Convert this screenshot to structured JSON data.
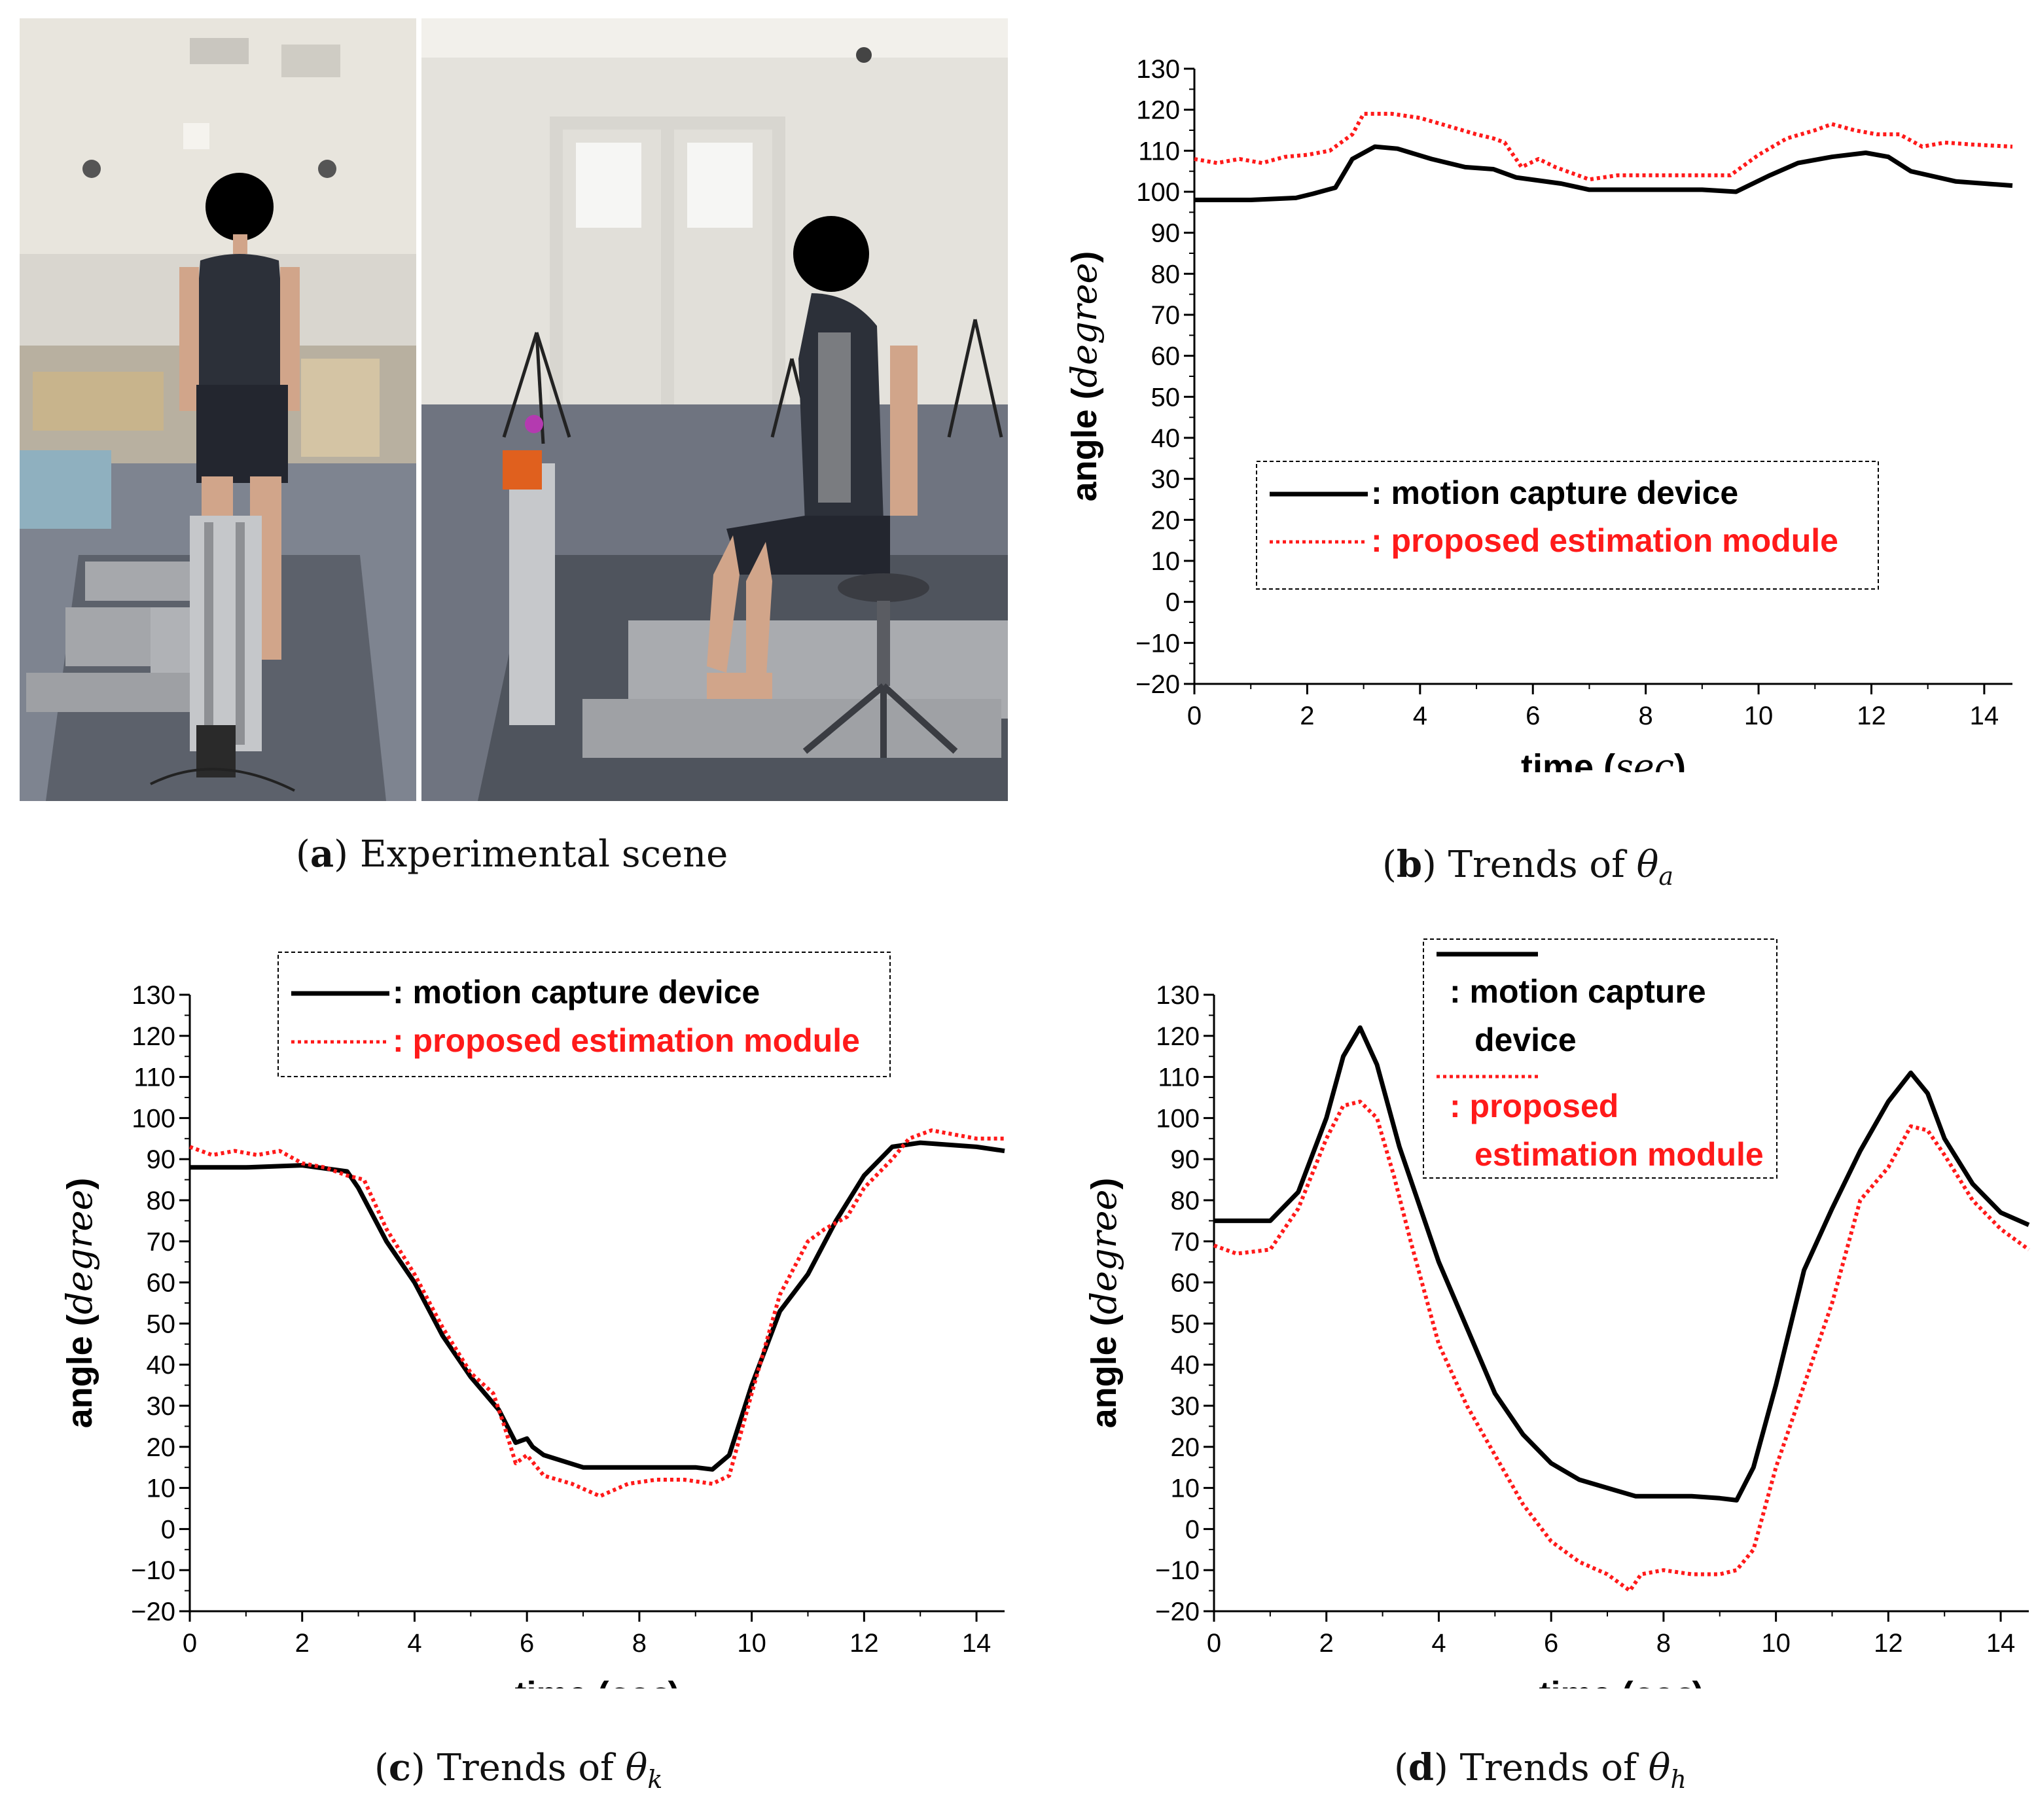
{
  "panels": {
    "a": {
      "letter": "a",
      "caption": "Experimental scene"
    },
    "b": {
      "letter": "b",
      "caption_prefix": "Trends of",
      "symbol": "θ",
      "subscript": "a"
    },
    "c": {
      "letter": "c",
      "caption_prefix": "Trends of",
      "symbol": "θ",
      "subscript": "k"
    },
    "d": {
      "letter": "d",
      "caption_prefix": "Trends of",
      "symbol": "θ",
      "subscript": "h"
    }
  },
  "colors": {
    "motion": "#000000",
    "proposed": "#ff1a1a"
  },
  "chart_data": [
    {
      "id": "b",
      "type": "line",
      "xlabel": "time",
      "xunit": "sec",
      "ylabel": "angle",
      "yunit": "degree",
      "xlim": [
        0,
        14.5
      ],
      "ylim": [
        -20,
        130
      ],
      "xticks": [
        0,
        2,
        4,
        6,
        8,
        10,
        12,
        14
      ],
      "yticks": [
        -20,
        -10,
        0,
        10,
        20,
        30,
        40,
        50,
        60,
        70,
        80,
        90,
        100,
        110,
        120,
        130
      ],
      "legend": {
        "placement": "lower-center",
        "entries": [
          ": motion capture device",
          ": proposed estimation module"
        ]
      },
      "series": [
        {
          "name": "motion capture device",
          "x": [
            0,
            1,
            1.8,
            2.1,
            2.5,
            2.8,
            3.2,
            3.6,
            4.2,
            4.8,
            5.3,
            5.7,
            6.5,
            7.0,
            8.0,
            9.0,
            9.6,
            10.2,
            10.7,
            11.3,
            11.9,
            12.3,
            12.7,
            13.5,
            14.5
          ],
          "y": [
            98,
            98,
            98.5,
            99.5,
            101,
            108,
            111,
            110.5,
            108,
            106,
            105.5,
            103.5,
            102,
            100.5,
            100.5,
            100.5,
            100,
            104,
            107,
            108.5,
            109.5,
            108.5,
            105,
            102.5,
            101.5
          ]
        },
        {
          "name": "proposed estimation module",
          "x": [
            0,
            0.4,
            0.8,
            1.2,
            1.6,
            2.0,
            2.4,
            2.8,
            3.0,
            3.5,
            4.0,
            4.5,
            5.0,
            5.3,
            5.5,
            5.8,
            6.1,
            6.4,
            7.0,
            7.5,
            8.0,
            8.5,
            9.0,
            9.5,
            10.0,
            10.5,
            11.0,
            11.3,
            11.7,
            12.1,
            12.5,
            12.9,
            13.3,
            13.8,
            14.5
          ],
          "y": [
            108,
            107,
            108,
            107,
            108.5,
            109,
            110,
            114,
            119,
            119,
            118,
            116,
            114,
            113,
            112,
            106,
            108,
            106,
            103,
            104,
            104,
            104,
            104,
            104,
            109,
            113,
            115,
            116.5,
            115,
            114,
            114,
            111,
            112,
            111.5,
            111
          ]
        }
      ]
    },
    {
      "id": "c",
      "type": "line",
      "xlabel": "time",
      "xunit": "sec",
      "ylabel": "angle",
      "yunit": "degree",
      "xlim": [
        0,
        14.5
      ],
      "ylim": [
        -20,
        130
      ],
      "xticks": [
        0,
        2,
        4,
        6,
        8,
        10,
        12,
        14
      ],
      "yticks": [
        -20,
        -10,
        0,
        10,
        20,
        30,
        40,
        50,
        60,
        70,
        80,
        90,
        100,
        110,
        120,
        130
      ],
      "legend": {
        "placement": "top-center",
        "entries": [
          ": motion capture device",
          ": proposed estimation module"
        ]
      },
      "series": [
        {
          "name": "motion capture device",
          "x": [
            0,
            1,
            2,
            2.8,
            3.0,
            3.5,
            4.0,
            4.5,
            5.0,
            5.5,
            5.8,
            6.0,
            6.1,
            6.3,
            7.0,
            7.5,
            8.0,
            9.0,
            9.3,
            9.6,
            10.0,
            10.5,
            11.0,
            11.5,
            12.0,
            12.5,
            13.0,
            14.0,
            14.5
          ],
          "y": [
            88,
            88,
            88.5,
            87,
            83,
            70,
            60,
            47,
            37,
            29,
            21,
            22,
            20,
            18,
            15,
            15,
            15,
            15,
            14.5,
            18,
            35,
            53,
            62,
            75,
            86,
            93,
            94,
            93,
            92
          ]
        },
        {
          "name": "proposed estimation module",
          "x": [
            0,
            0.4,
            0.8,
            1.2,
            1.6,
            2.0,
            2.4,
            2.8,
            3.1,
            3.5,
            4.0,
            4.5,
            5.0,
            5.4,
            5.6,
            5.8,
            6.0,
            6.3,
            6.8,
            7.3,
            7.8,
            8.3,
            8.8,
            9.3,
            9.6,
            10.0,
            10.5,
            11.0,
            11.3,
            11.7,
            12.0,
            12.5,
            12.8,
            13.2,
            13.6,
            14.0,
            14.5
          ],
          "y": [
            93,
            91,
            92,
            91,
            92,
            89,
            88,
            86,
            85,
            73,
            62,
            49,
            38,
            33,
            25,
            16,
            18,
            13,
            11,
            8,
            11,
            12,
            12,
            11,
            13,
            33,
            57,
            70,
            73,
            76,
            83,
            90,
            95,
            97,
            96,
            95,
            95
          ]
        }
      ]
    },
    {
      "id": "d",
      "type": "line",
      "xlabel": "time",
      "xunit": "sec",
      "ylabel": "angle",
      "yunit": "degree",
      "xlim": [
        0,
        14.5
      ],
      "ylim": [
        -20,
        130
      ],
      "xticks": [
        0,
        2,
        4,
        6,
        8,
        10,
        12,
        14
      ],
      "yticks": [
        -20,
        -10,
        0,
        10,
        20,
        30,
        40,
        50,
        60,
        70,
        80,
        90,
        100,
        110,
        120,
        130
      ],
      "legend": {
        "placement": "top-center",
        "entries": [
          ": motion capture",
          "device",
          ": proposed",
          "estimation module"
        ]
      },
      "series": [
        {
          "name": "motion capture device",
          "x": [
            0,
            1.0,
            1.5,
            2.0,
            2.3,
            2.6,
            2.9,
            3.3,
            4.0,
            5.0,
            5.5,
            6.0,
            6.5,
            7.0,
            7.5,
            8.0,
            8.5,
            9.0,
            9.3,
            9.6,
            10.0,
            10.5,
            11.0,
            11.5,
            12.0,
            12.4,
            12.7,
            13.0,
            13.5,
            14.0,
            14.5
          ],
          "y": [
            75,
            75,
            82,
            100,
            115,
            122,
            113,
            93,
            65,
            33,
            23,
            16,
            12,
            10,
            8,
            8,
            8,
            7.5,
            7,
            15,
            35,
            63,
            78,
            92,
            104,
            111,
            106,
            95,
            84,
            77,
            74
          ]
        },
        {
          "name": "proposed estimation module",
          "x": [
            0,
            0.4,
            1.0,
            1.5,
            2.0,
            2.3,
            2.6,
            2.9,
            3.2,
            3.5,
            4.0,
            4.5,
            5.0,
            5.5,
            6.0,
            6.5,
            7.0,
            7.4,
            7.6,
            8.0,
            8.5,
            9.0,
            9.3,
            9.6,
            10.0,
            10.5,
            11.0,
            11.5,
            12.0,
            12.4,
            12.7,
            13.0,
            13.5,
            14.0,
            14.5
          ],
          "y": [
            69,
            67,
            68,
            78,
            95,
            103,
            104,
            100,
            86,
            70,
            45,
            30,
            18,
            6,
            -3,
            -8,
            -11,
            -15,
            -11,
            -10,
            -11,
            -11,
            -10,
            -5,
            15,
            35,
            55,
            80,
            88,
            98,
            97,
            91,
            80,
            73,
            68
          ]
        }
      ]
    }
  ]
}
